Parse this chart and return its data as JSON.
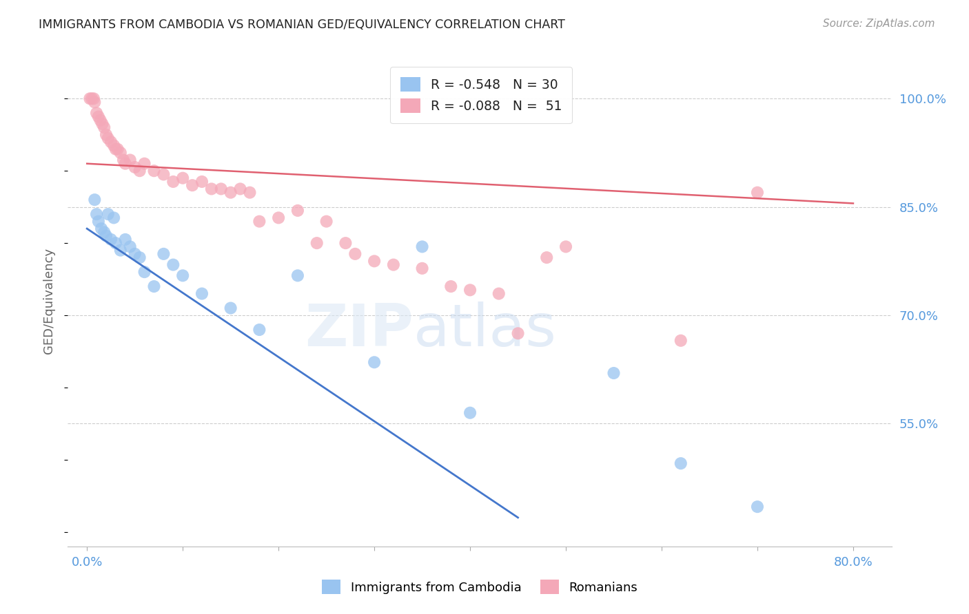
{
  "title": "IMMIGRANTS FROM CAMBODIA VS ROMANIAN GED/EQUIVALENCY CORRELATION CHART",
  "source": "Source: ZipAtlas.com",
  "ylabel": "GED/Equivalency",
  "legend_label_blue": "Immigrants from Cambodia",
  "legend_label_pink": "Romanians",
  "r_blue": "-0.548",
  "n_blue": "30",
  "r_pink": "-0.088",
  "n_pink": "51",
  "x_ticks": [
    0.0,
    10.0,
    20.0,
    30.0,
    40.0,
    50.0,
    60.0,
    70.0,
    80.0
  ],
  "x_tick_labels": [
    "0.0%",
    "",
    "",
    "",
    "",
    "",
    "",
    "",
    "80.0%"
  ],
  "y_ticks_right": [
    55.0,
    70.0,
    85.0,
    100.0
  ],
  "y_tick_labels_right": [
    "55.0%",
    "70.0%",
    "85.0%",
    "100.0%"
  ],
  "xlim": [
    -2.0,
    84.0
  ],
  "ylim": [
    38.0,
    106.0
  ],
  "watermark_zip": "ZIP",
  "watermark_atlas": "atlas",
  "background_color": "#ffffff",
  "grid_color": "#cccccc",
  "title_color": "#222222",
  "blue_color": "#99c4f0",
  "pink_color": "#f4a8b8",
  "blue_line_color": "#4477cc",
  "pink_line_color": "#e06070",
  "axis_label_color": "#5599dd",
  "blue_scatter_x": [
    0.8,
    1.0,
    1.2,
    1.5,
    1.8,
    2.0,
    2.2,
    2.5,
    2.8,
    3.0,
    3.5,
    4.0,
    4.5,
    5.0,
    5.5,
    6.0,
    7.0,
    8.0,
    9.0,
    10.0,
    12.0,
    15.0,
    18.0,
    22.0,
    30.0,
    35.0,
    40.0,
    55.0,
    62.0,
    70.0
  ],
  "blue_scatter_y": [
    86.0,
    84.0,
    83.0,
    82.0,
    81.5,
    81.0,
    84.0,
    80.5,
    83.5,
    80.0,
    79.0,
    80.5,
    79.5,
    78.5,
    78.0,
    76.0,
    74.0,
    78.5,
    77.0,
    75.5,
    73.0,
    71.0,
    68.0,
    75.5,
    63.5,
    79.5,
    56.5,
    62.0,
    49.5,
    43.5
  ],
  "pink_scatter_x": [
    0.3,
    0.5,
    0.7,
    0.8,
    1.0,
    1.2,
    1.4,
    1.6,
    1.8,
    2.0,
    2.2,
    2.5,
    2.8,
    3.0,
    3.2,
    3.5,
    3.8,
    4.0,
    4.5,
    5.0,
    5.5,
    6.0,
    7.0,
    8.0,
    9.0,
    10.0,
    11.0,
    12.0,
    13.0,
    14.0,
    15.0,
    16.0,
    17.0,
    18.0,
    20.0,
    22.0,
    24.0,
    25.0,
    27.0,
    28.0,
    30.0,
    32.0,
    35.0,
    38.0,
    40.0,
    43.0,
    45.0,
    48.0,
    50.0,
    62.0,
    70.0
  ],
  "pink_scatter_y": [
    100.0,
    100.0,
    100.0,
    99.5,
    98.0,
    97.5,
    97.0,
    96.5,
    96.0,
    95.0,
    94.5,
    94.0,
    93.5,
    93.0,
    93.0,
    92.5,
    91.5,
    91.0,
    91.5,
    90.5,
    90.0,
    91.0,
    90.0,
    89.5,
    88.5,
    89.0,
    88.0,
    88.5,
    87.5,
    87.5,
    87.0,
    87.5,
    87.0,
    83.0,
    83.5,
    84.5,
    80.0,
    83.0,
    80.0,
    78.5,
    77.5,
    77.0,
    76.5,
    74.0,
    73.5,
    73.0,
    67.5,
    78.0,
    79.5,
    66.5,
    87.0
  ],
  "blue_trend_x": [
    0.0,
    45.0
  ],
  "blue_trend_y": [
    82.0,
    42.0
  ],
  "pink_trend_x": [
    0.0,
    80.0
  ],
  "pink_trend_y": [
    91.0,
    85.5
  ]
}
